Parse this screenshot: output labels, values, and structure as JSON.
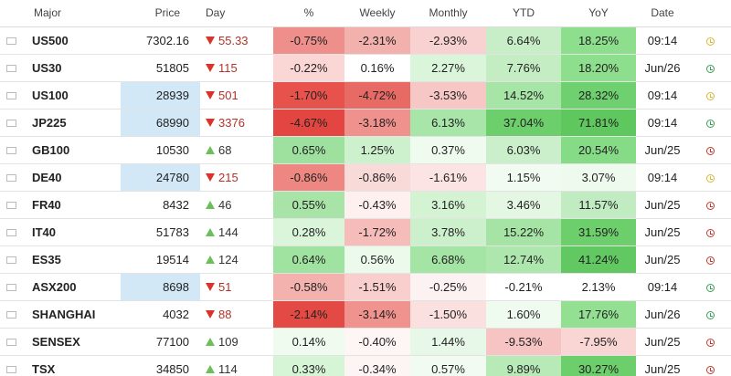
{
  "colors": {
    "neg_strong": "#e8534e",
    "neg_medium": "#f08c88",
    "neg_light": "#f6c2c0",
    "neg_faint": "#fbe3e2",
    "pos_strong": "#66cc66",
    "pos_medium": "#8fdc8f",
    "pos_light": "#b8ebb8",
    "pos_faint": "#e1f7e1",
    "price_highlight": "#d2e8f7",
    "clock_yellow": "#d7b733",
    "clock_green": "#3c9e50",
    "clock_red": "#c0392b"
  },
  "table": {
    "headers": {
      "major": "Major",
      "price": "Price",
      "day": "Day",
      "pct": "%",
      "weekly": "Weekly",
      "monthly": "Monthly",
      "ytd": "YTD",
      "yoy": "YoY",
      "date": "Date"
    },
    "rows": [
      {
        "flag": "us-flag",
        "symbol": "US500",
        "price": "7302.16",
        "price_hl": false,
        "day_dir": "down",
        "day": "55.33",
        "pct": "-0.75%",
        "pct_bg": "#ef8f8b",
        "weekly": "-2.31%",
        "weekly_bg": "#f3b1ae",
        "monthly": "-2.93%",
        "monthly_bg": "#f8d2d0",
        "ytd": "6.64%",
        "ytd_bg": "#c7eec7",
        "yoy": "18.25%",
        "yoy_bg": "#8ddf8d",
        "date": "09:14",
        "clock": "clock_yellow"
      },
      {
        "flag": "us-flag",
        "symbol": "US30",
        "price": "51805",
        "price_hl": false,
        "day_dir": "down",
        "day": "115",
        "pct": "-0.22%",
        "pct_bg": "#fad6d4",
        "weekly": "0.16%",
        "weekly_bg": "#ffffff",
        "monthly": "2.27%",
        "monthly_bg": "#daf5da",
        "ytd": "7.76%",
        "ytd_bg": "#c4edc4",
        "yoy": "18.20%",
        "yoy_bg": "#8ddf8d",
        "date": "Jun/26",
        "clock": "clock_green"
      },
      {
        "flag": "us-flag",
        "symbol": "US100",
        "price": "28939",
        "price_hl": true,
        "day_dir": "down",
        "day": "501",
        "pct": "-1.70%",
        "pct_bg": "#e8524d",
        "weekly": "-4.72%",
        "weekly_bg": "#e86a65",
        "monthly": "-3.53%",
        "monthly_bg": "#f6c7c5",
        "ytd": "14.52%",
        "ytd_bg": "#a7e5a7",
        "yoy": "28.32%",
        "yoy_bg": "#6fd06f",
        "date": "09:14",
        "clock": "clock_yellow"
      },
      {
        "flag": "jp-flag",
        "symbol": "JP225",
        "price": "68990",
        "price_hl": true,
        "day_dir": "down",
        "day": "3376",
        "pct": "-4.67%",
        "pct_bg": "#e34640",
        "weekly": "-3.18%",
        "weekly_bg": "#ef918d",
        "monthly": "6.13%",
        "monthly_bg": "#a8e5a8",
        "ytd": "37.04%",
        "ytd_bg": "#6ccf6c",
        "yoy": "71.81%",
        "yoy_bg": "#5ec75e",
        "date": "09:14",
        "clock": "clock_green"
      },
      {
        "flag": "gb-flag",
        "symbol": "GB100",
        "price": "10530",
        "price_hl": false,
        "day_dir": "up",
        "day": "68",
        "pct": "0.65%",
        "pct_bg": "#9ee19e",
        "weekly": "1.25%",
        "weekly_bg": "#cdf0cd",
        "monthly": "0.37%",
        "monthly_bg": "#f0fbf0",
        "ytd": "6.03%",
        "ytd_bg": "#cbefcb",
        "yoy": "20.54%",
        "yoy_bg": "#86dc86",
        "date": "Jun/25",
        "clock": "clock_red"
      },
      {
        "flag": "de-flag",
        "symbol": "DE40",
        "price": "24780",
        "price_hl": true,
        "day_dir": "down",
        "day": "215",
        "pct": "-0.86%",
        "pct_bg": "#ee8681",
        "weekly": "-0.86%",
        "weekly_bg": "#f8dad8",
        "monthly": "-1.61%",
        "monthly_bg": "#fbe4e3",
        "ytd": "1.15%",
        "ytd_bg": "#f2fbf2",
        "yoy": "3.07%",
        "yoy_bg": "#edfaed",
        "date": "09:14",
        "clock": "clock_yellow"
      },
      {
        "flag": "fr-flag",
        "symbol": "FR40",
        "price": "8432",
        "price_hl": false,
        "day_dir": "up",
        "day": "46",
        "pct": "0.55%",
        "pct_bg": "#a8e4a8",
        "weekly": "-0.43%",
        "weekly_bg": "#fdf0ef",
        "monthly": "3.16%",
        "monthly_bg": "#d3f3d3",
        "ytd": "3.46%",
        "ytd_bg": "#e3f7e3",
        "yoy": "11.57%",
        "yoy_bg": "#c1ecc1",
        "date": "Jun/25",
        "clock": "clock_red"
      },
      {
        "flag": "it-flag",
        "symbol": "IT40",
        "price": "51783",
        "price_hl": false,
        "day_dir": "up",
        "day": "144",
        "pct": "0.28%",
        "pct_bg": "#dbf5db",
        "weekly": "-1.72%",
        "weekly_bg": "#f5bcba",
        "monthly": "3.78%",
        "monthly_bg": "#ccf0cc",
        "ytd": "15.22%",
        "ytd_bg": "#a6e4a6",
        "yoy": "31.59%",
        "yoy_bg": "#6ccf6c",
        "date": "Jun/25",
        "clock": "clock_red"
      },
      {
        "flag": "es-flag",
        "symbol": "ES35",
        "price": "19514",
        "price_hl": false,
        "day_dir": "up",
        "day": "124",
        "pct": "0.64%",
        "pct_bg": "#a0e2a0",
        "weekly": "0.56%",
        "weekly_bg": "#ecfaec",
        "monthly": "6.68%",
        "monthly_bg": "#a4e4a4",
        "ytd": "12.74%",
        "ytd_bg": "#aee7ae",
        "yoy": "41.24%",
        "yoy_bg": "#62c962",
        "date": "Jun/25",
        "clock": "clock_red"
      },
      {
        "flag": "au-flag",
        "symbol": "ASX200",
        "price": "8698",
        "price_hl": true,
        "day_dir": "down",
        "day": "51",
        "pct": "-0.58%",
        "pct_bg": "#f4b2af",
        "weekly": "-1.51%",
        "weekly_bg": "#f8cfcd",
        "monthly": "-0.25%",
        "monthly_bg": "#fdf2f2",
        "ytd": "-0.21%",
        "ytd_bg": "#ffffff",
        "yoy": "2.13%",
        "yoy_bg": "#ffffff",
        "date": "09:14",
        "clock": "clock_green"
      },
      {
        "flag": "cn-flag",
        "symbol": "SHANGHAI",
        "price": "4032",
        "price_hl": false,
        "day_dir": "down",
        "day": "88",
        "pct": "-2.14%",
        "pct_bg": "#e44a44",
        "weekly": "-3.14%",
        "weekly_bg": "#f0928e",
        "monthly": "-1.50%",
        "monthly_bg": "#fae0df",
        "ytd": "1.60%",
        "ytd_bg": "#f0fbf0",
        "yoy": "17.76%",
        "yoy_bg": "#93e093",
        "date": "Jun/26",
        "clock": "clock_green"
      },
      {
        "flag": "in-flag",
        "symbol": "SENSEX",
        "price": "77100",
        "price_hl": false,
        "day_dir": "up",
        "day": "109",
        "pct": "0.14%",
        "pct_bg": "#f0fbf0",
        "weekly": "-0.40%",
        "weekly_bg": "#fef5f5",
        "monthly": "1.44%",
        "monthly_bg": "#e8f8e8",
        "ytd": "-9.53%",
        "ytd_bg": "#f6c4c2",
        "yoy": "-7.95%",
        "yoy_bg": "#f9d5d3",
        "date": "Jun/25",
        "clock": "clock_red"
      },
      {
        "flag": "ca-flag",
        "symbol": "TSX",
        "price": "34850",
        "price_hl": false,
        "day_dir": "up",
        "day": "114",
        "pct": "0.33%",
        "pct_bg": "#d6f4d6",
        "weekly": "-0.34%",
        "weekly_bg": "#fdf4f4",
        "monthly": "0.57%",
        "monthly_bg": "#f2fbf2",
        "ytd": "9.89%",
        "ytd_bg": "#b8eab8",
        "yoy": "30.27%",
        "yoy_bg": "#6ccf6c",
        "date": "Jun/25",
        "clock": "clock_red"
      }
    ]
  }
}
